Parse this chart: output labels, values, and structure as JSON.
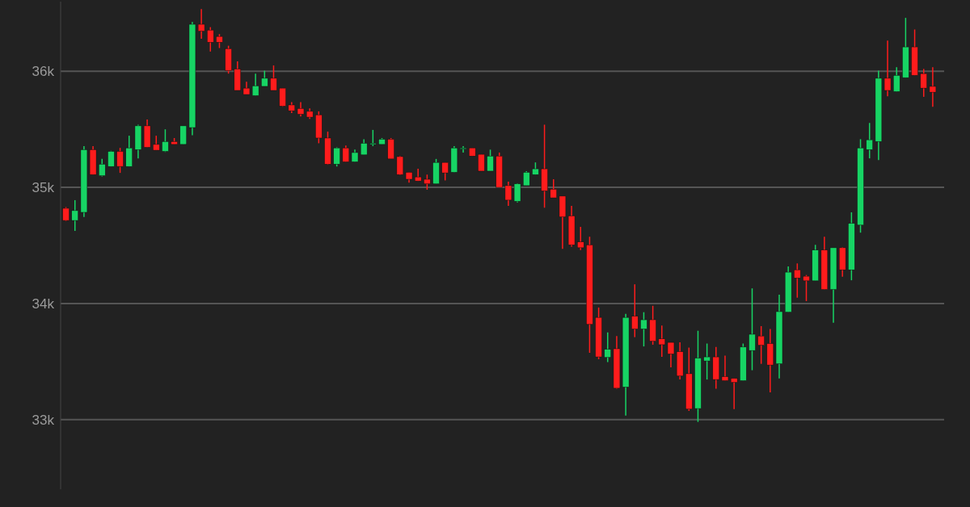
{
  "chart_data": {
    "type": "candlestick",
    "categories": [
      null,
      null,
      null,
      null,
      null,
      null,
      null,
      null,
      null,
      null,
      null,
      null,
      null,
      null,
      null,
      null,
      null,
      null,
      null,
      null,
      null,
      null,
      null,
      null,
      null,
      null,
      null,
      null,
      null,
      null,
      null,
      null,
      null,
      null,
      null,
      null,
      null,
      null,
      null,
      null,
      null,
      null,
      null,
      null,
      null,
      null,
      null,
      null,
      null,
      null,
      null,
      null,
      null,
      null,
      null,
      null,
      null,
      null,
      null,
      null,
      null,
      null,
      null,
      null,
      null,
      null,
      null,
      null,
      null,
      null,
      null,
      null,
      null,
      null,
      null,
      null,
      null,
      null,
      null,
      null,
      null,
      null,
      null,
      null,
      null,
      null,
      null,
      null,
      null,
      null,
      null,
      null,
      null,
      null,
      null,
      null,
      null
    ],
    "ohlc": [
      [
        34820,
        34830,
        34710,
        34715
      ],
      [
        34715,
        34890,
        34625,
        34800
      ],
      [
        34785,
        35355,
        34745,
        35325
      ],
      [
        35325,
        35355,
        35110,
        35110
      ],
      [
        35100,
        35245,
        35095,
        35200
      ],
      [
        35180,
        35315,
        35180,
        35310
      ],
      [
        35310,
        35340,
        35125,
        35180
      ],
      [
        35180,
        35445,
        35180,
        35340
      ],
      [
        35325,
        35540,
        35250,
        35530
      ],
      [
        35530,
        35585,
        35345,
        35345
      ],
      [
        35370,
        35445,
        35320,
        35320
      ],
      [
        35310,
        35500,
        35305,
        35395
      ],
      [
        35395,
        35425,
        35370,
        35370
      ],
      [
        35370,
        35530,
        35370,
        35530
      ],
      [
        35515,
        36425,
        35450,
        36405
      ],
      [
        36405,
        36535,
        36280,
        36345
      ],
      [
        36355,
        36380,
        36170,
        36250
      ],
      [
        36300,
        36320,
        36200,
        36250
      ],
      [
        36195,
        36220,
        35980,
        36005
      ],
      [
        36020,
        36085,
        35835,
        35835
      ],
      [
        35855,
        35910,
        35800,
        35800
      ],
      [
        35790,
        35980,
        35790,
        35875
      ],
      [
        35870,
        36005,
        35870,
        35940
      ],
      [
        35940,
        36050,
        35835,
        35835
      ],
      [
        35855,
        35855,
        35695,
        35700
      ],
      [
        35710,
        35735,
        35640,
        35660
      ],
      [
        35680,
        35735,
        35610,
        35630
      ],
      [
        35655,
        35680,
        35590,
        35605
      ],
      [
        35625,
        35655,
        35380,
        35425
      ],
      [
        35425,
        35480,
        35195,
        35200
      ],
      [
        35200,
        35345,
        35180,
        35340
      ],
      [
        35340,
        35360,
        35220,
        35220
      ],
      [
        35220,
        35325,
        35220,
        35300
      ],
      [
        35280,
        35415,
        35280,
        35380
      ],
      [
        35370,
        35495,
        35355,
        35380
      ],
      [
        35370,
        35425,
        35370,
        35415
      ],
      [
        35415,
        35425,
        35245,
        35245
      ],
      [
        35265,
        35270,
        35105,
        35110
      ],
      [
        35130,
        35130,
        35040,
        35070
      ],
      [
        35090,
        35160,
        35055,
        35055
      ],
      [
        35070,
        35110,
        34980,
        35030
      ],
      [
        35030,
        35245,
        35030,
        35215
      ],
      [
        35215,
        35215,
        35060,
        35125
      ],
      [
        35130,
        35355,
        35130,
        35340
      ],
      [
        35335,
        35355,
        35300,
        35340
      ],
      [
        35340,
        35340,
        35270,
        35270
      ],
      [
        35285,
        35285,
        35140,
        35140
      ],
      [
        35140,
        35325,
        35140,
        35270
      ],
      [
        35270,
        35300,
        35000,
        35000
      ],
      [
        35015,
        35050,
        34840,
        34890
      ],
      [
        34880,
        35035,
        34870,
        35030
      ],
      [
        35015,
        35140,
        35015,
        35130
      ],
      [
        35110,
        35215,
        35110,
        35160
      ],
      [
        35160,
        35540,
        34825,
        34970
      ],
      [
        34985,
        35070,
        34910,
        34910
      ],
      [
        34925,
        34925,
        34470,
        34745
      ],
      [
        34755,
        34840,
        34490,
        34505
      ],
      [
        34530,
        34660,
        34460,
        34480
      ],
      [
        34505,
        34575,
        33575,
        33820
      ],
      [
        33880,
        33965,
        33520,
        33540
      ],
      [
        33535,
        33750,
        33495,
        33605
      ],
      [
        33610,
        33720,
        33265,
        33270
      ],
      [
        33280,
        33910,
        33035,
        33880
      ],
      [
        33890,
        34165,
        33710,
        33780
      ],
      [
        33780,
        33925,
        33630,
        33860
      ],
      [
        33860,
        33980,
        33645,
        33675
      ],
      [
        33695,
        33810,
        33540,
        33645
      ],
      [
        33665,
        33665,
        33450,
        33565
      ],
      [
        33585,
        33665,
        33345,
        33375
      ],
      [
        33395,
        33620,
        33075,
        33090
      ],
      [
        33095,
        33765,
        32980,
        33530
      ],
      [
        33505,
        33655,
        33345,
        33540
      ],
      [
        33540,
        33625,
        33265,
        33345
      ],
      [
        33370,
        33550,
        33335,
        33335
      ],
      [
        33355,
        33355,
        33090,
        33320
      ],
      [
        33335,
        33655,
        33335,
        33625
      ],
      [
        33595,
        34130,
        33425,
        33735
      ],
      [
        33720,
        33805,
        33480,
        33640
      ],
      [
        33655,
        33780,
        33235,
        33470
      ],
      [
        33480,
        34075,
        33355,
        33930
      ],
      [
        33925,
        34320,
        33925,
        34270
      ],
      [
        34290,
        34345,
        34050,
        34220
      ],
      [
        34235,
        34245,
        34020,
        34195
      ],
      [
        34195,
        34505,
        34195,
        34460
      ],
      [
        34460,
        34575,
        34120,
        34120
      ],
      [
        34120,
        34480,
        33835,
        34480
      ],
      [
        34480,
        34485,
        34230,
        34290
      ],
      [
        34290,
        34785,
        34200,
        34690
      ],
      [
        34675,
        35415,
        34610,
        35340
      ],
      [
        35325,
        35555,
        35250,
        35410
      ],
      [
        35395,
        36005,
        35235,
        35940
      ],
      [
        35940,
        36265,
        35785,
        35835
      ],
      [
        35825,
        36035,
        35825,
        35965
      ],
      [
        35945,
        36460,
        35945,
        36210
      ],
      [
        36210,
        36360,
        35965,
        35965
      ],
      [
        35980,
        36020,
        35780,
        35855
      ],
      [
        35870,
        36035,
        35695,
        35820
      ]
    ],
    "colors": [
      "#ff1c1c",
      "#17d464",
      "#17d464",
      "#ff1c1c",
      "#17d464",
      "#17d464",
      "#ff1c1c",
      "#17d464",
      "#17d464",
      "#ff1c1c",
      "#ff1c1c",
      "#17d464",
      "#ff1c1c",
      "#17d464",
      "#17d464",
      "#ff1c1c",
      "#ff1c1c",
      "#ff1c1c",
      "#ff1c1c",
      "#ff1c1c",
      "#ff1c1c",
      "#17d464",
      "#17d464",
      "#ff1c1c",
      "#ff1c1c",
      "#ff1c1c",
      "#ff1c1c",
      "#ff1c1c",
      "#ff1c1c",
      "#ff1c1c",
      "#17d464",
      "#ff1c1c",
      "#17d464",
      "#17d464",
      "#17d464",
      "#17d464",
      "#ff1c1c",
      "#ff1c1c",
      "#ff1c1c",
      "#ff1c1c",
      "#ff1c1c",
      "#17d464",
      "#ff1c1c",
      "#17d464",
      "#17d464",
      "#ff1c1c",
      "#ff1c1c",
      "#17d464",
      "#ff1c1c",
      "#ff1c1c",
      "#17d464",
      "#17d464",
      "#17d464",
      "#ff1c1c",
      "#ff1c1c",
      "#ff1c1c",
      "#ff1c1c",
      "#ff1c1c",
      "#ff1c1c",
      "#ff1c1c",
      "#17d464",
      "#ff1c1c",
      "#17d464",
      "#ff1c1c",
      "#17d464",
      "#ff1c1c",
      "#ff1c1c",
      "#ff1c1c",
      "#ff1c1c",
      "#ff1c1c",
      "#17d464",
      "#17d464",
      "#ff1c1c",
      "#ff1c1c",
      "#ff1c1c",
      "#17d464",
      "#17d464",
      "#ff1c1c",
      "#ff1c1c",
      "#17d464",
      "#17d464",
      "#ff1c1c",
      "#ff1c1c",
      "#17d464",
      "#ff1c1c",
      "#17d464",
      "#ff1c1c",
      "#17d464",
      "#17d464",
      "#17d464",
      "#17d464",
      "#ff1c1c",
      "#17d464",
      "#17d464",
      "#ff1c1c",
      "#ff1c1c",
      "#ff1c1c"
    ],
    "ylim": [
      32400,
      36600
    ],
    "yticks": [
      {
        "value": 33000,
        "label": "33k"
      },
      {
        "value": 34000,
        "label": "34k"
      },
      {
        "value": 35000,
        "label": "35k"
      },
      {
        "value": 36000,
        "label": "36k"
      }
    ],
    "grid": "y"
  }
}
